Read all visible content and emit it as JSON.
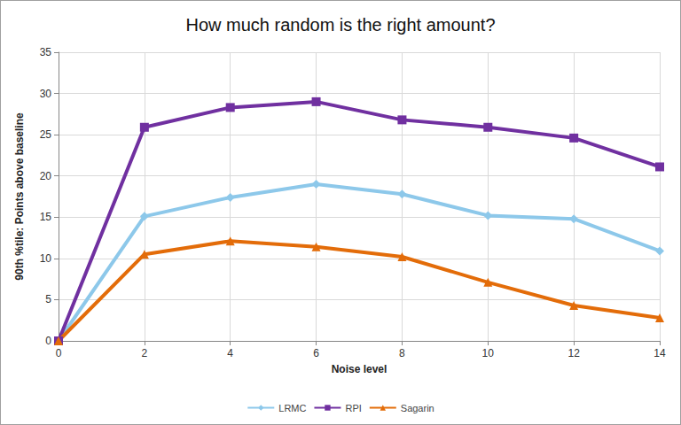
{
  "chart_data": {
    "type": "line",
    "title": "How much random is the right amount?",
    "x_label": "Noise level",
    "y_label": "90th %tile: Points above baseline",
    "x": [
      0,
      2,
      4,
      6,
      8,
      10,
      12,
      14
    ],
    "xlim": [
      0,
      14
    ],
    "xticks": [
      0,
      2,
      4,
      6,
      8,
      10,
      12,
      14
    ],
    "ylim": [
      0,
      35
    ],
    "yticks": [
      0,
      5,
      10,
      15,
      20,
      25,
      30,
      35
    ],
    "grid": true,
    "legend": "bottom",
    "series": [
      {
        "name": "LRMC",
        "color": "#8DC8EA",
        "marker": "diamond",
        "values": [
          0,
          15.1,
          17.4,
          19.0,
          17.8,
          15.2,
          14.8,
          10.9
        ]
      },
      {
        "name": "RPI",
        "color": "#7030A0",
        "marker": "square",
        "values": [
          0,
          25.9,
          28.3,
          29.0,
          26.8,
          25.9,
          24.6,
          21.1
        ]
      },
      {
        "name": "Sagarin",
        "color": "#E36C09",
        "marker": "triangle",
        "values": [
          0,
          10.5,
          12.1,
          11.4,
          10.2,
          7.1,
          4.3,
          2.8
        ]
      }
    ]
  }
}
